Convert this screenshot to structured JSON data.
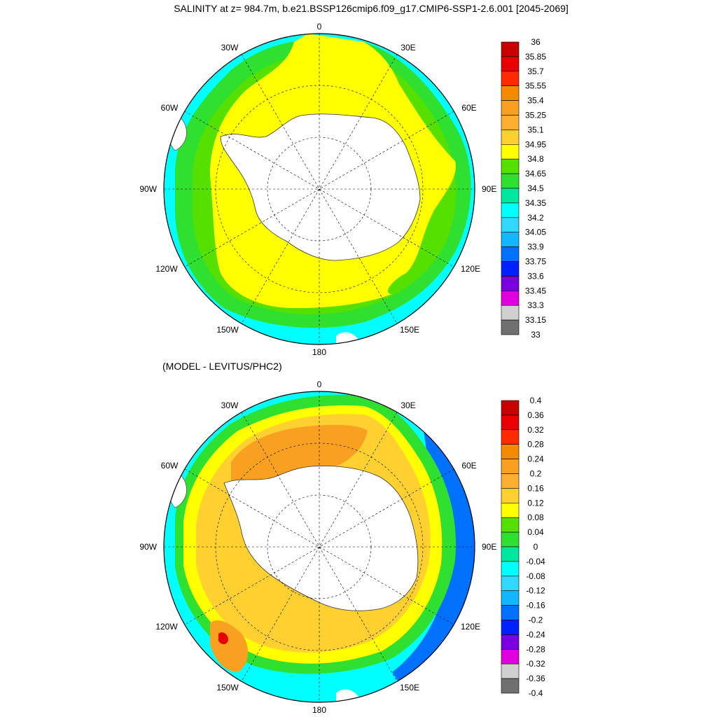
{
  "title": "SALINITY at z= 984.7m, b.e21.BSSP126cmip6.f09_g17.CMIP6-SSP1-2.6.001 [2045-2069]",
  "subtitle": "(MODEL - LEVITUS/PHC2)",
  "longitude_labels": {
    "top": "0",
    "bottom": "180",
    "left": "90W",
    "right": "90E",
    "upper_left_1": "30W",
    "upper_left_2": "60W",
    "upper_right_1": "30E",
    "upper_right_2": "60E",
    "lower_left_1": "120W",
    "lower_left_2": "150W",
    "lower_right_1": "120E",
    "lower_right_2": "150E"
  },
  "colorbar_top": {
    "labels": [
      "36",
      "35.85",
      "35.7",
      "35.55",
      "35.4",
      "35.25",
      "35.1",
      "34.95",
      "34.8",
      "34.65",
      "34.5",
      "34.35",
      "34.2",
      "34.05",
      "33.9",
      "33.75",
      "33.6",
      "33.45",
      "33.3",
      "33.15",
      "33"
    ],
    "colors": [
      "#c80000",
      "#e60000",
      "#ff2a00",
      "#f58a00",
      "#f9a020",
      "#fdb030",
      "#ffd030",
      "#ffff00",
      "#55e000",
      "#30e030",
      "#00e8a0",
      "#00ffff",
      "#30d8ff",
      "#10b8ff",
      "#0070ff",
      "#0020ff",
      "#7a00e0",
      "#e000e0",
      "#d0d0d0",
      "#707070"
    ]
  },
  "colorbar_bottom": {
    "labels": [
      "0.4",
      "0.36",
      "0.32",
      "0.28",
      "0.24",
      "0.2",
      "0.16",
      "0.12",
      "0.08",
      "0.04",
      "0",
      "-0.04",
      "-0.08",
      "-0.12",
      "-0.16",
      "-0.2",
      "-0.24",
      "-0.28",
      "-0.32",
      "-0.36",
      "-0.4"
    ],
    "colors": [
      "#c80000",
      "#e60000",
      "#ff2a00",
      "#f58a00",
      "#f9a020",
      "#fdb030",
      "#ffd030",
      "#ffff00",
      "#55e000",
      "#30e030",
      "#00e8a0",
      "#00ffff",
      "#30d8ff",
      "#10b8ff",
      "#0070ff",
      "#0020ff",
      "#7a00e0",
      "#e000e0",
      "#d0d0d0",
      "#707070"
    ]
  }
}
